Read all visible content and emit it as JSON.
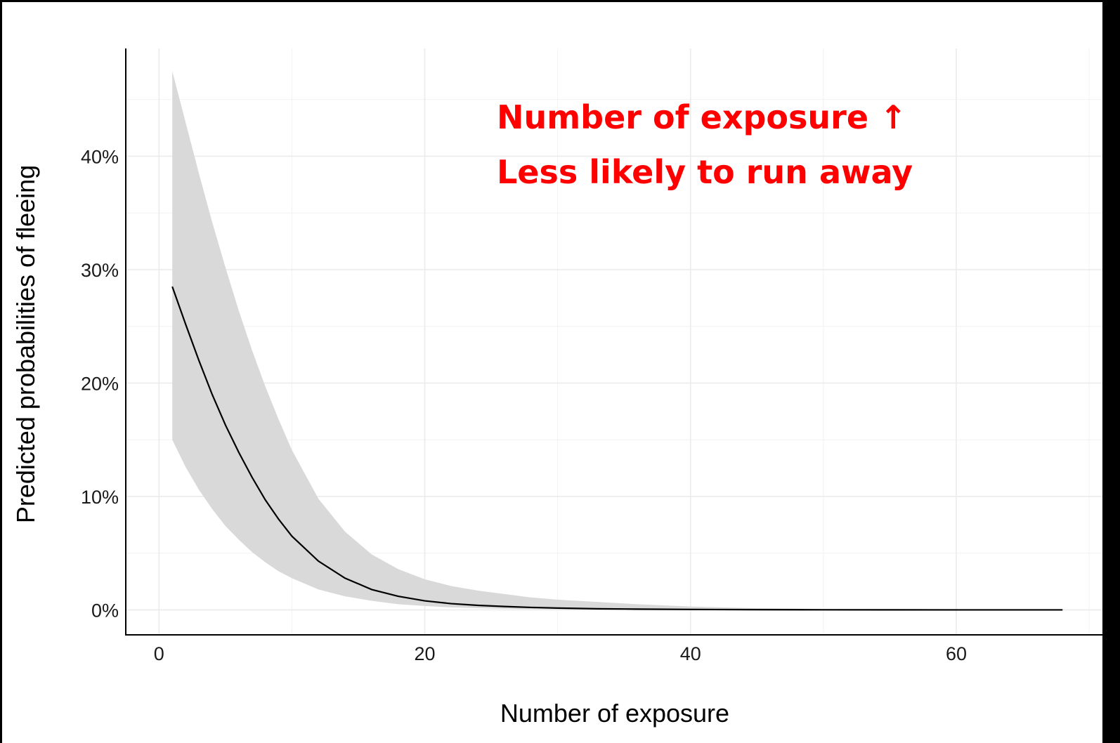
{
  "chart_data": {
    "type": "line",
    "xlabel": "Number of exposure",
    "ylabel": "Predicted probabilities of fleeing",
    "xlim": [
      -2.5,
      71
    ],
    "ylim": [
      -2.2,
      49.5
    ],
    "x_ticks": [
      0,
      20,
      40,
      60
    ],
    "x_tick_labels": [
      "0",
      "20",
      "40",
      "60"
    ],
    "y_ticks": [
      0,
      10,
      20,
      30,
      40
    ],
    "y_tick_labels": [
      "0%",
      "10%",
      "20%",
      "30%",
      "40%"
    ],
    "grid": true,
    "series": [
      {
        "x": [
          1,
          2,
          3,
          4,
          5,
          6,
          7,
          8,
          9,
          10,
          12,
          14,
          16,
          18,
          20,
          22,
          24,
          26,
          28,
          30,
          33,
          36,
          40,
          45,
          50,
          55,
          60,
          65,
          68
        ],
        "y": [
          28.5,
          25.2,
          22.0,
          19.0,
          16.3,
          13.9,
          11.7,
          9.7,
          8.0,
          6.5,
          4.3,
          2.8,
          1.8,
          1.2,
          0.8,
          0.55,
          0.4,
          0.3,
          0.22,
          0.16,
          0.1,
          0.07,
          0.04,
          0.02,
          0.01,
          0.005,
          0.003,
          0.002,
          0.001
        ],
        "lower": [
          15.0,
          12.6,
          10.6,
          8.9,
          7.4,
          6.2,
          5.1,
          4.2,
          3.4,
          2.8,
          1.8,
          1.2,
          0.8,
          0.5,
          0.35,
          0.22,
          0.15,
          0.1,
          0.07,
          0.05,
          0.03,
          0.02,
          0.01,
          0.005,
          0.002,
          0.001,
          0.0,
          0.0,
          0.0
        ],
        "upper": [
          47.5,
          43.0,
          38.5,
          34.2,
          30.2,
          26.4,
          22.9,
          19.7,
          16.8,
          14.1,
          9.8,
          6.9,
          4.9,
          3.6,
          2.7,
          2.1,
          1.7,
          1.4,
          1.1,
          0.9,
          0.7,
          0.5,
          0.3,
          0.15,
          0.08,
          0.04,
          0.02,
          0.01,
          0.005
        ]
      }
    ],
    "annotations": [
      "Number of exposure ↑",
      "Less likely to run away"
    ],
    "colors": {
      "line": "#000000",
      "band": "#d9d9d9",
      "annotation": "#ff0000",
      "grid": "#ebebeb"
    }
  }
}
